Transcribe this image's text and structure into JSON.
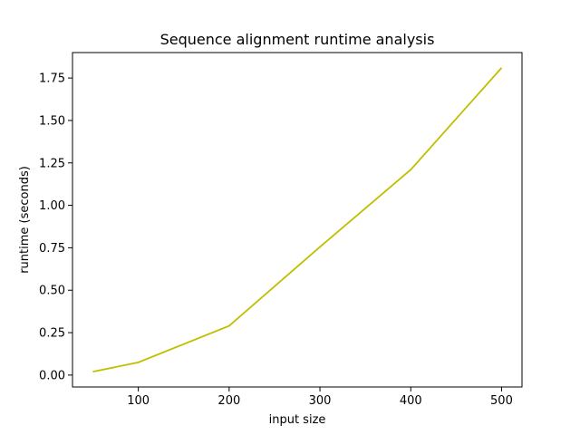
{
  "chart_data": {
    "type": "line",
    "title": "Sequence alignment runtime analysis",
    "xlabel": "input size",
    "ylabel": "runtime (seconds)",
    "xlim": [
      27.5,
      522.5
    ],
    "ylim": [
      -0.07,
      1.9
    ],
    "x_ticks": [
      100,
      200,
      300,
      400,
      500
    ],
    "x_tick_labels": [
      "100",
      "200",
      "300",
      "400",
      "500"
    ],
    "y_ticks": [
      0,
      0.25,
      0.5,
      0.75,
      1.0,
      1.25,
      1.5,
      1.75
    ],
    "y_tick_labels": [
      "0.00",
      "0.25",
      "0.50",
      "0.75",
      "1.00",
      "1.25",
      "1.50",
      "1.75"
    ],
    "grid": false,
    "legend": "none",
    "series": [
      {
        "color": "#bfbf00",
        "x": [
          50,
          100,
          200,
          300,
          400,
          500
        ],
        "y": [
          0.02,
          0.075,
          0.29,
          0.755,
          1.21,
          1.81
        ]
      }
    ]
  }
}
